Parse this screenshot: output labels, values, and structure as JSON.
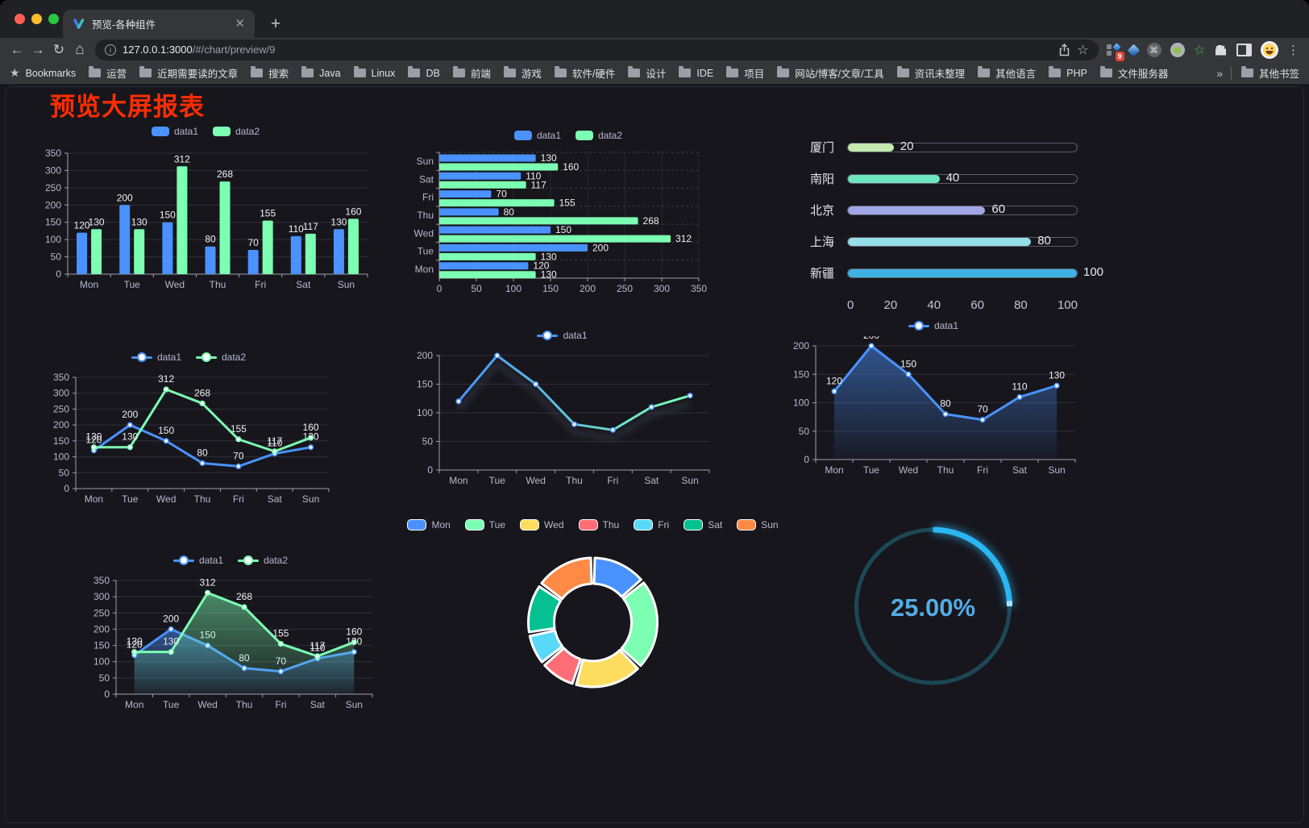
{
  "browser": {
    "tab": {
      "title": "预览-各种组件"
    },
    "new_tab_button": "+",
    "url": {
      "host": "127.0.0.1:3000",
      "path": "/#/chart/preview/9"
    },
    "extensions_badge": "9",
    "bookmarks_bar": {
      "root_label": "Bookmarks",
      "folders": [
        "运营",
        "近期需要读的文章",
        "搜索",
        "Java",
        "Linux",
        "DB",
        "前端",
        "游戏",
        "软件/硬件",
        "设计",
        "IDE",
        "项目",
        "网站/博客/文章/工具",
        "资讯未整理",
        "其他语言",
        "PHP",
        "文件服务器"
      ],
      "overflow_chevron": "»",
      "other_bookmarks": "其他书签"
    }
  },
  "page": {
    "title": "预览大屏报表",
    "title_color": "#ff2d00",
    "background": "#17161c"
  },
  "chart_data": [
    {
      "id": "grouped-bar",
      "type": "bar",
      "categories": [
        "Mon",
        "Tue",
        "Wed",
        "Thu",
        "Fri",
        "Sat",
        "Sun"
      ],
      "series": [
        {
          "name": "data1",
          "color": "#4992ff",
          "values": [
            120,
            200,
            150,
            80,
            70,
            110,
            130
          ]
        },
        {
          "name": "data2",
          "color": "#7cffb2",
          "values": [
            130,
            130,
            312,
            268,
            155,
            117,
            160
          ]
        }
      ],
      "ylim": [
        0,
        350
      ],
      "ytick": 50,
      "show_labels": true,
      "legend_position": "top",
      "grid": true
    },
    {
      "id": "horizontal-bar",
      "type": "bar-h",
      "categories": [
        "Mon",
        "Tue",
        "Wed",
        "Thu",
        "Fri",
        "Sat",
        "Sun"
      ],
      "series": [
        {
          "name": "data1",
          "color": "#4992ff",
          "values": [
            120,
            200,
            150,
            80,
            70,
            110,
            130
          ]
        },
        {
          "name": "data2",
          "color": "#7cffb2",
          "values": [
            130,
            130,
            312,
            268,
            155,
            117,
            160
          ]
        }
      ],
      "xlim": [
        0,
        350
      ],
      "xtick": 50,
      "show_labels": true,
      "legend_position": "top",
      "grid": true
    },
    {
      "id": "progress-bars",
      "type": "progress",
      "rows": [
        {
          "label": "厦门",
          "value": 20,
          "color": "#c4ebad"
        },
        {
          "label": "南阳",
          "value": 40,
          "color": "#6be6c1"
        },
        {
          "label": "北京",
          "value": 60,
          "color": "#a0a7e6"
        },
        {
          "label": "上海",
          "value": 80,
          "color": "#96dee8"
        },
        {
          "label": "新疆",
          "value": 100,
          "color": "#3fb1e3"
        }
      ],
      "xlim": [
        0,
        100
      ],
      "xticks": [
        0,
        20,
        40,
        60,
        80,
        100
      ]
    },
    {
      "id": "two-series-line",
      "type": "line",
      "categories": [
        "Mon",
        "Tue",
        "Wed",
        "Thu",
        "Fri",
        "Sat",
        "Sun"
      ],
      "series": [
        {
          "name": "data1",
          "color": "#4992ff",
          "values": [
            120,
            200,
            150,
            80,
            70,
            110,
            130
          ]
        },
        {
          "name": "data2",
          "color": "#7cffb2",
          "values": [
            130,
            130,
            312,
            268,
            155,
            117,
            160
          ]
        }
      ],
      "ylim": [
        0,
        350
      ],
      "ytick": 50,
      "show_labels": true,
      "legend_position": "top",
      "grid": true
    },
    {
      "id": "gradient-line",
      "type": "line",
      "categories": [
        "Mon",
        "Tue",
        "Wed",
        "Thu",
        "Fri",
        "Sat",
        "Sun"
      ],
      "series": [
        {
          "name": "data1",
          "gradient": [
            "#4992ff",
            "#7cffb2"
          ],
          "shadow": true,
          "values": [
            120,
            200,
            150,
            80,
            70,
            110,
            130
          ]
        }
      ],
      "ylim": [
        0,
        200
      ],
      "ytick": 50,
      "show_labels": false,
      "legend_position": "top",
      "grid": true
    },
    {
      "id": "single-area-line",
      "type": "line",
      "categories": [
        "Mon",
        "Tue",
        "Wed",
        "Thu",
        "Fri",
        "Sat",
        "Sun"
      ],
      "series": [
        {
          "name": "data1",
          "color": "#4992ff",
          "area": true,
          "values": [
            120,
            200,
            150,
            80,
            70,
            110,
            130
          ]
        }
      ],
      "ylim": [
        0,
        200
      ],
      "ytick": 50,
      "show_labels": true,
      "legend_position": "top",
      "grid": true
    },
    {
      "id": "two-series-area-line",
      "type": "line",
      "categories": [
        "Mon",
        "Tue",
        "Wed",
        "Thu",
        "Fri",
        "Sat",
        "Sun"
      ],
      "series": [
        {
          "name": "data1",
          "color": "#4992ff",
          "area": true,
          "values": [
            120,
            200,
            150,
            80,
            70,
            110,
            130
          ]
        },
        {
          "name": "data2",
          "color": "#7cffb2",
          "area": true,
          "values": [
            130,
            130,
            312,
            268,
            155,
            117,
            160
          ]
        }
      ],
      "ylim": [
        0,
        350
      ],
      "ytick": 50,
      "show_labels": true,
      "legend_position": "top",
      "grid": true
    },
    {
      "id": "donut",
      "type": "pie",
      "legend_position": "top",
      "items": [
        {
          "label": "Mon",
          "value": 120,
          "color": "#4992ff"
        },
        {
          "label": "Tue",
          "value": 200,
          "color": "#7cffb2"
        },
        {
          "label": "Wed",
          "value": 150,
          "color": "#fddd60"
        },
        {
          "label": "Thu",
          "value": 80,
          "color": "#ff6e76"
        },
        {
          "label": "Fri",
          "value": 70,
          "color": "#58d9f9"
        },
        {
          "label": "Sat",
          "value": 110,
          "color": "#05c091"
        },
        {
          "label": "Sun",
          "value": 130,
          "color": "#ff8a45"
        }
      ]
    },
    {
      "id": "gauge",
      "type": "gauge",
      "value": 25,
      "label": "25.00%",
      "color": "#2bb6f2",
      "track_color": "#1c4856",
      "text_color": "#53ace4"
    }
  ]
}
